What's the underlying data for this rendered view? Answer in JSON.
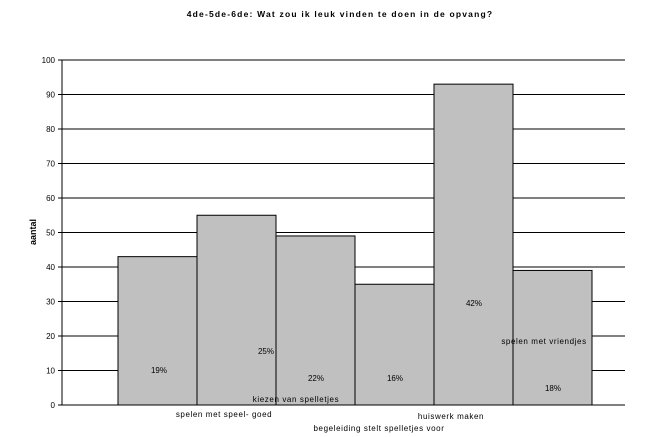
{
  "chart_data": {
    "type": "bar",
    "title": "4de-5de-6de: Wat zou ik leuk vinden te doen in de opvang?",
    "ylabel": "aantal",
    "ylim": [
      0,
      100
    ],
    "yticks": [
      0,
      10,
      20,
      30,
      40,
      50,
      60,
      70,
      80,
      90,
      100
    ],
    "grid": true,
    "categories": [
      "",
      "spelen met speel- goed",
      "kiezen van spelletjes",
      "begeleiding stelt spelletjes voor",
      "huiswerk maken",
      "spelen met vriendjes"
    ],
    "values": [
      43,
      55,
      49,
      35,
      93,
      39
    ],
    "percent_labels": [
      "19%",
      "25%",
      "22%",
      "16%",
      "42%",
      "18%"
    ]
  }
}
